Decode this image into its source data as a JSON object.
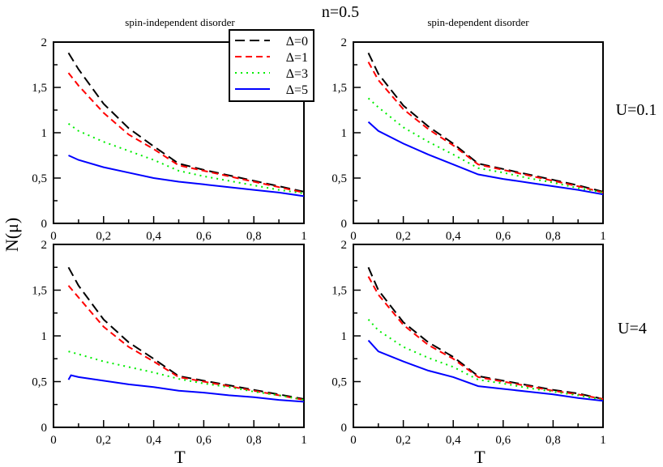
{
  "figure": {
    "title": "n=0.5",
    "ylabel": "N(μ)",
    "xlabel": "T"
  },
  "chart_data": [
    {
      "type": "line",
      "title": "spin-independent disorder",
      "row_label": "U=0.1",
      "xlim": [
        0,
        1
      ],
      "ylim": [
        0,
        2
      ],
      "xticks": [
        "0",
        "0,2",
        "0,4",
        "0,6",
        "0,8",
        "1"
      ],
      "yticks": [
        "0",
        "0,5",
        "1",
        "1,5",
        "2"
      ],
      "legend": "top-right",
      "series": [
        {
          "name": "Δ=0",
          "color": "#000000",
          "style": "dash",
          "x": [
            0.06,
            0.1,
            0.2,
            0.3,
            0.4,
            0.5,
            0.6,
            0.7,
            0.8,
            0.9,
            1.0
          ],
          "y": [
            1.88,
            1.7,
            1.32,
            1.05,
            0.85,
            0.66,
            0.59,
            0.53,
            0.47,
            0.41,
            0.35
          ]
        },
        {
          "name": "Δ=1",
          "color": "#ff0000",
          "style": "dash-short",
          "x": [
            0.06,
            0.1,
            0.2,
            0.3,
            0.4,
            0.5,
            0.6,
            0.7,
            0.8,
            0.9,
            1.0
          ],
          "y": [
            1.66,
            1.52,
            1.22,
            0.98,
            0.82,
            0.64,
            0.58,
            0.52,
            0.46,
            0.4,
            0.34
          ]
        },
        {
          "name": "Δ=3",
          "color": "#00ee00",
          "style": "dot",
          "x": [
            0.06,
            0.1,
            0.2,
            0.3,
            0.4,
            0.5,
            0.6,
            0.7,
            0.8,
            0.9,
            1.0
          ],
          "y": [
            1.1,
            1.02,
            0.9,
            0.8,
            0.7,
            0.58,
            0.52,
            0.47,
            0.42,
            0.37,
            0.33
          ]
        },
        {
          "name": "Δ=5",
          "color": "#0000ff",
          "style": "solid",
          "x": [
            0.06,
            0.1,
            0.2,
            0.3,
            0.4,
            0.5,
            0.6,
            0.7,
            0.8,
            0.9,
            1.0
          ],
          "y": [
            0.75,
            0.7,
            0.62,
            0.56,
            0.5,
            0.46,
            0.43,
            0.4,
            0.37,
            0.34,
            0.3
          ]
        }
      ]
    },
    {
      "type": "line",
      "title": "spin-dependent disorder",
      "row_label": "U=0.1",
      "xlim": [
        0,
        1
      ],
      "ylim": [
        0,
        2
      ],
      "xticks": [
        "0",
        "0,2",
        "0,4",
        "0,6",
        "0,8",
        "1"
      ],
      "yticks": [
        "0",
        "0,5",
        "1",
        "1,5",
        "2"
      ],
      "series": [
        {
          "name": "Δ=0",
          "color": "#000000",
          "style": "dash",
          "x": [
            0.06,
            0.1,
            0.2,
            0.3,
            0.4,
            0.5,
            0.6,
            0.7,
            0.8,
            0.9,
            1.0
          ],
          "y": [
            1.88,
            1.65,
            1.3,
            1.07,
            0.88,
            0.66,
            0.6,
            0.54,
            0.48,
            0.42,
            0.35
          ]
        },
        {
          "name": "Δ=1",
          "color": "#ff0000",
          "style": "dash-short",
          "x": [
            0.06,
            0.1,
            0.2,
            0.3,
            0.4,
            0.5,
            0.6,
            0.7,
            0.8,
            0.9,
            1.0
          ],
          "y": [
            1.78,
            1.58,
            1.26,
            1.04,
            0.86,
            0.65,
            0.59,
            0.53,
            0.47,
            0.41,
            0.34
          ]
        },
        {
          "name": "Δ=3",
          "color": "#00ee00",
          "style": "dot",
          "x": [
            0.06,
            0.1,
            0.2,
            0.3,
            0.4,
            0.5,
            0.6,
            0.7,
            0.8,
            0.9,
            1.0
          ],
          "y": [
            1.38,
            1.28,
            1.06,
            0.9,
            0.76,
            0.61,
            0.56,
            0.5,
            0.45,
            0.39,
            0.34
          ]
        },
        {
          "name": "Δ=5",
          "color": "#0000ff",
          "style": "solid",
          "x": [
            0.06,
            0.1,
            0.2,
            0.3,
            0.4,
            0.5,
            0.6,
            0.7,
            0.8,
            0.9,
            1.0
          ],
          "y": [
            1.12,
            1.02,
            0.88,
            0.76,
            0.65,
            0.54,
            0.49,
            0.45,
            0.41,
            0.37,
            0.32
          ]
        }
      ]
    },
    {
      "type": "line",
      "row_label": "U=4",
      "xlim": [
        0,
        1
      ],
      "ylim": [
        0,
        2
      ],
      "xticks": [
        "0",
        "0,2",
        "0,4",
        "0,6",
        "0,8",
        "1"
      ],
      "yticks": [
        "0",
        "0,5",
        "1",
        "1,5",
        "2"
      ],
      "series": [
        {
          "name": "Δ=0",
          "color": "#000000",
          "style": "dash",
          "x": [
            0.06,
            0.1,
            0.2,
            0.3,
            0.4,
            0.5,
            0.6,
            0.7,
            0.8,
            0.9,
            1.0
          ],
          "y": [
            1.75,
            1.55,
            1.18,
            0.93,
            0.75,
            0.56,
            0.51,
            0.46,
            0.41,
            0.36,
            0.31
          ]
        },
        {
          "name": "Δ=1",
          "color": "#ff0000",
          "style": "dash-short",
          "x": [
            0.06,
            0.1,
            0.2,
            0.3,
            0.4,
            0.5,
            0.6,
            0.7,
            0.8,
            0.9,
            1.0
          ],
          "y": [
            1.55,
            1.42,
            1.1,
            0.88,
            0.72,
            0.55,
            0.5,
            0.45,
            0.4,
            0.35,
            0.3
          ]
        },
        {
          "name": "Δ=3",
          "color": "#00ee00",
          "style": "dot",
          "x": [
            0.06,
            0.1,
            0.2,
            0.3,
            0.4,
            0.5,
            0.6,
            0.7,
            0.8,
            0.9,
            1.0
          ],
          "y": [
            0.83,
            0.8,
            0.72,
            0.66,
            0.6,
            0.53,
            0.48,
            0.44,
            0.39,
            0.35,
            0.3
          ]
        },
        {
          "name": "Δ=5",
          "color": "#0000ff",
          "style": "solid",
          "x": [
            0.06,
            0.07,
            0.1,
            0.2,
            0.3,
            0.4,
            0.5,
            0.6,
            0.7,
            0.8,
            0.9,
            1.0
          ],
          "y": [
            0.52,
            0.57,
            0.55,
            0.51,
            0.47,
            0.44,
            0.4,
            0.38,
            0.35,
            0.33,
            0.3,
            0.28
          ]
        }
      ]
    },
    {
      "type": "line",
      "row_label": "U=4",
      "xlim": [
        0,
        1
      ],
      "ylim": [
        0,
        2
      ],
      "xticks": [
        "0",
        "0,2",
        "0,4",
        "0,6",
        "0,8",
        "1"
      ],
      "yticks": [
        "0",
        "0,5",
        "1",
        "1,5",
        "2"
      ],
      "series": [
        {
          "name": "Δ=0",
          "color": "#000000",
          "style": "dash",
          "x": [
            0.06,
            0.1,
            0.2,
            0.3,
            0.4,
            0.5,
            0.6,
            0.7,
            0.8,
            0.9,
            1.0
          ],
          "y": [
            1.75,
            1.5,
            1.15,
            0.93,
            0.77,
            0.56,
            0.51,
            0.46,
            0.41,
            0.37,
            0.31
          ]
        },
        {
          "name": "Δ=1",
          "color": "#ff0000",
          "style": "dash-short",
          "x": [
            0.06,
            0.1,
            0.2,
            0.3,
            0.4,
            0.5,
            0.6,
            0.7,
            0.8,
            0.9,
            1.0
          ],
          "y": [
            1.65,
            1.45,
            1.12,
            0.9,
            0.75,
            0.55,
            0.5,
            0.45,
            0.4,
            0.36,
            0.31
          ]
        },
        {
          "name": "Δ=3",
          "color": "#00ee00",
          "style": "dot",
          "x": [
            0.06,
            0.1,
            0.2,
            0.3,
            0.4,
            0.5,
            0.6,
            0.7,
            0.8,
            0.9,
            1.0
          ],
          "y": [
            1.18,
            1.06,
            0.88,
            0.76,
            0.66,
            0.52,
            0.48,
            0.43,
            0.39,
            0.35,
            0.3
          ]
        },
        {
          "name": "Δ=5",
          "color": "#0000ff",
          "style": "solid",
          "x": [
            0.06,
            0.1,
            0.2,
            0.3,
            0.4,
            0.5,
            0.6,
            0.7,
            0.8,
            0.9,
            1.0
          ],
          "y": [
            0.95,
            0.83,
            0.72,
            0.62,
            0.55,
            0.45,
            0.42,
            0.39,
            0.36,
            0.32,
            0.29
          ]
        }
      ]
    }
  ]
}
